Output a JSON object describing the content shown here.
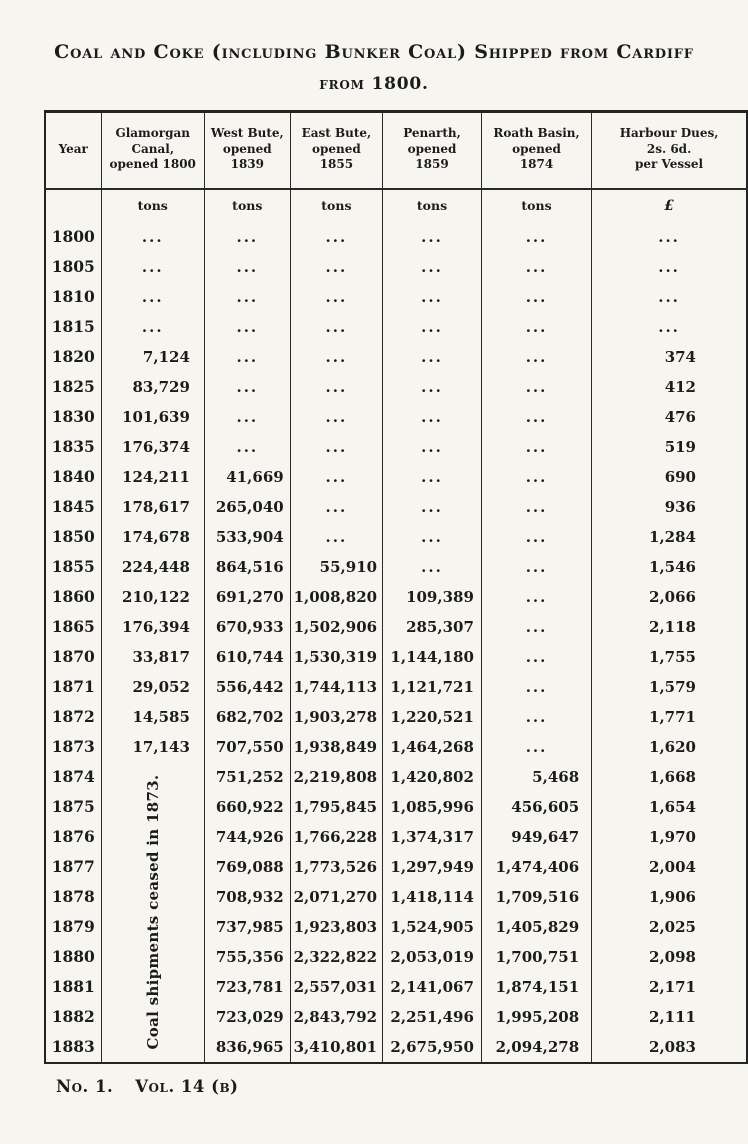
{
  "colors": {
    "paper": "#f7f5f0",
    "ink": "#1b1b1b"
  },
  "title": {
    "line1": "Coal and Coke (including Bunker Coal) Shipped from Cardiff",
    "line2": "from 1800."
  },
  "table": {
    "headers": [
      {
        "lines": [
          "Year"
        ]
      },
      {
        "lines": [
          "Glamorgan",
          "Canal,",
          "opened 1800"
        ]
      },
      {
        "lines": [
          "West Bute,",
          "opened",
          "1839"
        ]
      },
      {
        "lines": [
          "East Bute,",
          "opened",
          "1855"
        ]
      },
      {
        "lines": [
          "Penarth,",
          "opened",
          "1859"
        ]
      },
      {
        "lines": [
          "Roath Basin,",
          "opened",
          "1874"
        ]
      },
      {
        "lines": [
          "Harbour Dues,",
          "2s. 6d.",
          "per Vessel"
        ]
      }
    ],
    "units": [
      "tons",
      "tons",
      "tons",
      "tons",
      "tons",
      "£"
    ],
    "note_rotated": "Coal shipments ceased in 1873.",
    "rows": [
      {
        "year": "1800",
        "values": [
          "...",
          "...",
          "...",
          "...",
          "...",
          "..."
        ]
      },
      {
        "year": "1805",
        "values": [
          "...",
          "...",
          "...",
          "...",
          "...",
          "..."
        ]
      },
      {
        "year": "1810",
        "values": [
          "...",
          "...",
          "...",
          "...",
          "...",
          "..."
        ]
      },
      {
        "year": "1815",
        "values": [
          "...",
          "...",
          "...",
          "...",
          "...",
          "..."
        ]
      },
      {
        "year": "1820",
        "values": [
          "7,124",
          "...",
          "...",
          "...",
          "...",
          "374"
        ]
      },
      {
        "year": "1825",
        "values": [
          "83,729",
          "...",
          "...",
          "...",
          "...",
          "412"
        ]
      },
      {
        "year": "1830",
        "values": [
          "101,639",
          "...",
          "...",
          "...",
          "...",
          "476"
        ]
      },
      {
        "year": "1835",
        "values": [
          "176,374",
          "...",
          "...",
          "...",
          "...",
          "519"
        ]
      },
      {
        "year": "1840",
        "values": [
          "124,211",
          "41,669",
          "...",
          "...",
          "...",
          "690"
        ]
      },
      {
        "year": "1845",
        "values": [
          "178,617",
          "265,040",
          "...",
          "...",
          "...",
          "936"
        ]
      },
      {
        "year": "1850",
        "values": [
          "174,678",
          "533,904",
          "...",
          "...",
          "...",
          "1,284"
        ]
      },
      {
        "year": "1855",
        "values": [
          "224,448",
          "864,516",
          "55,910",
          "...",
          "...",
          "1,546"
        ]
      },
      {
        "year": "1860",
        "values": [
          "210,122",
          "691,270",
          "1,008,820",
          "109,389",
          "...",
          "2,066"
        ]
      },
      {
        "year": "1865",
        "values": [
          "176,394",
          "670,933",
          "1,502,906",
          "285,307",
          "...",
          "2,118"
        ]
      },
      {
        "year": "1870",
        "values": [
          "33,817",
          "610,744",
          "1,530,319",
          "1,144,180",
          "...",
          "1,755"
        ]
      },
      {
        "year": "1871",
        "values": [
          "29,052",
          "556,442",
          "1,744,113",
          "1,121,721",
          "...",
          "1,579"
        ]
      },
      {
        "year": "1872",
        "values": [
          "14,585",
          "682,702",
          "1,903,278",
          "1,220,521",
          "...",
          "1,771"
        ]
      },
      {
        "year": "1873",
        "values": [
          "17,143",
          "707,550",
          "1,938,849",
          "1,464,268",
          "...",
          "1,620"
        ]
      },
      {
        "year": "1874",
        "values": [
          null,
          "751,252",
          "2,219,808",
          "1,420,802",
          "5,468",
          "1,668"
        ]
      },
      {
        "year": "1875",
        "values": [
          null,
          "660,922",
          "1,795,845",
          "1,085,996",
          "456,605",
          "1,654"
        ]
      },
      {
        "year": "1876",
        "values": [
          null,
          "744,926",
          "1,766,228",
          "1,374,317",
          "949,647",
          "1,970"
        ]
      },
      {
        "year": "1877",
        "values": [
          null,
          "769,088",
          "1,773,526",
          "1,297,949",
          "1,474,406",
          "2,004"
        ]
      },
      {
        "year": "1878",
        "values": [
          null,
          "708,932",
          "2,071,270",
          "1,418,114",
          "1,709,516",
          "1,906"
        ]
      },
      {
        "year": "1879",
        "values": [
          null,
          "737,985",
          "1,923,803",
          "1,524,905",
          "1,405,829",
          "2,025"
        ]
      },
      {
        "year": "1880",
        "values": [
          null,
          "755,356",
          "2,322,822",
          "2,053,019",
          "1,700,751",
          "2,098"
        ]
      },
      {
        "year": "1881",
        "values": [
          null,
          "723,781",
          "2,557,031",
          "2,141,067",
          "1,874,151",
          "2,171"
        ]
      },
      {
        "year": "1882",
        "values": [
          null,
          "723,029",
          "2,843,792",
          "2,251,496",
          "1,995,208",
          "2,111"
        ]
      },
      {
        "year": "1883",
        "values": [
          null,
          "836,965",
          "3,410,801",
          "2,675,950",
          "2,094,278",
          "2,083"
        ]
      }
    ]
  },
  "footer": {
    "no": "No. 1.",
    "vol": "Vol. 14 (b)"
  }
}
